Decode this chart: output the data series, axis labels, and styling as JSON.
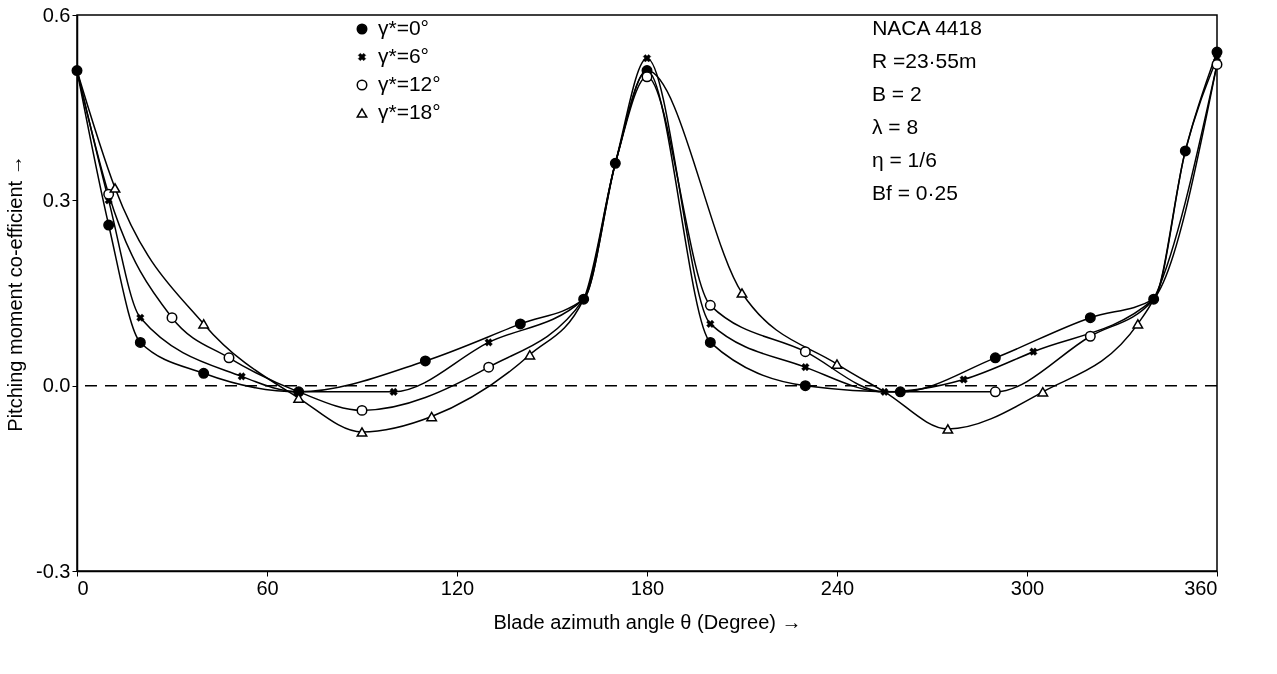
{
  "chart_data": {
    "type": "line",
    "xlabel": "Blade azimuth angle θ (Degree) →",
    "ylabel": "Pitching moment co-efficient →",
    "xlim": [
      0,
      360
    ],
    "xticks": [
      0,
      60,
      120,
      180,
      240,
      300,
      360
    ],
    "ylim": [
      -0.3,
      0.6
    ],
    "yticks": [
      -0.3,
      {
        "value": 0,
        "label": "0.0"
      },
      0.3,
      0.6
    ],
    "grid": false,
    "legend": "top",
    "line_style": "solid",
    "ref_lines": [
      {
        "axis": "y",
        "value": 0,
        "line_style": "dashed",
        "color": "#000000"
      }
    ],
    "annotations": [
      "NACA 4418",
      "R =23·55m",
      "B = 2",
      "λ = 8",
      "η = 1/6",
      "Bf = 0·25"
    ],
    "series": [
      {
        "name": "γ*=0°",
        "color": "#000000",
        "marker": "circle",
        "x": [
          0,
          10,
          20,
          40,
          70,
          110,
          140,
          160,
          170,
          180,
          200,
          230,
          260,
          290,
          320,
          340,
          350,
          360
        ],
        "values": [
          0.51,
          0.26,
          0.07,
          0.02,
          -0.01,
          0.04,
          0.1,
          0.14,
          0.36,
          0.51,
          0.07,
          0.0,
          -0.01,
          0.045,
          0.11,
          0.14,
          0.38,
          0.54
        ]
      },
      {
        "name": "γ*=6°",
        "color": "#000000",
        "marker": "cross",
        "x": [
          0,
          10,
          20,
          52,
          70,
          100,
          130,
          160,
          170,
          180,
          200,
          230,
          255,
          280,
          302,
          340,
          350,
          360
        ],
        "values": [
          0.51,
          0.3,
          0.11,
          0.015,
          -0.01,
          -0.01,
          0.07,
          0.14,
          0.36,
          0.53,
          0.1,
          0.03,
          -0.01,
          0.01,
          0.055,
          0.14,
          0.38,
          0.53
        ]
      },
      {
        "name": "γ*=12°",
        "color": "#000000",
        "marker": "circle",
        "x": [
          0,
          10,
          30,
          48,
          70,
          90,
          130,
          160,
          170,
          180,
          200,
          230,
          255,
          290,
          320,
          340,
          360
        ],
        "values": [
          0.51,
          0.31,
          0.11,
          0.045,
          -0.01,
          -0.04,
          0.03,
          0.14,
          0.36,
          0.5,
          0.13,
          0.055,
          -0.01,
          -0.01,
          0.08,
          0.14,
          0.52
        ]
      },
      {
        "name": "γ*=18°",
        "color": "#000000",
        "marker": "triangle",
        "x": [
          0,
          12,
          40,
          70,
          90,
          112,
          143,
          160,
          170,
          180,
          210,
          240,
          255,
          275,
          305,
          335,
          340,
          360
        ],
        "values": [
          0.51,
          0.32,
          0.1,
          -0.02,
          -0.075,
          -0.05,
          0.05,
          0.14,
          0.36,
          0.51,
          0.15,
          0.035,
          -0.01,
          -0.07,
          -0.01,
          0.1,
          0.14,
          0.52
        ]
      }
    ]
  }
}
